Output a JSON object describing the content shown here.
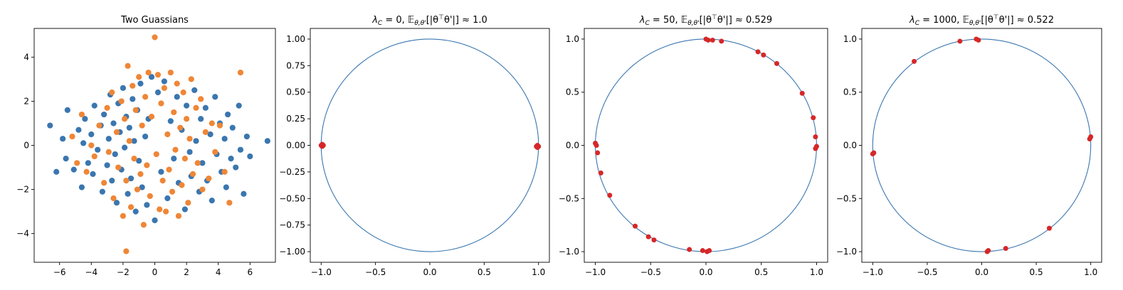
{
  "chart_data": [
    {
      "type": "scatter",
      "title": "Two Guassians",
      "xlim": [
        -7.6,
        7.6
      ],
      "ylim": [
        -5.3,
        5.3
      ],
      "xticks": [
        -6,
        -4,
        -2,
        0,
        2,
        4,
        6
      ],
      "yticks": [
        -4,
        -2,
        0,
        2,
        4
      ],
      "grid": false,
      "series": [
        {
          "color": "#3a76af",
          "points": [
            [
              -6.6,
              0.9
            ],
            [
              -6.2,
              -1.2
            ],
            [
              -5.8,
              0.3
            ],
            [
              -5.6,
              -0.6
            ],
            [
              -5.5,
              1.6
            ],
            [
              -5.1,
              -1.1
            ],
            [
              -4.8,
              0.7
            ],
            [
              -4.6,
              -1.9
            ],
            [
              -4.5,
              0.1
            ],
            [
              -4.4,
              1.2
            ],
            [
              -4.2,
              -0.8
            ],
            [
              -4.0,
              0.5
            ],
            [
              -3.9,
              -1.3
            ],
            [
              -3.8,
              1.8
            ],
            [
              -3.6,
              -0.2
            ],
            [
              -3.4,
              0.9
            ],
            [
              -3.3,
              -2.1
            ],
            [
              -3.2,
              1.4
            ],
            [
              -3.0,
              -0.9
            ],
            [
              -2.9,
              0.3
            ],
            [
              -2.8,
              2.3
            ],
            [
              -2.7,
              -1.6
            ],
            [
              -2.6,
              1.0
            ],
            [
              -2.5,
              -0.4
            ],
            [
              -2.4,
              -2.6
            ],
            [
              -2.3,
              1.9
            ],
            [
              -2.2,
              0.6
            ],
            [
              -2.1,
              -1.1
            ],
            [
              -2.0,
              2.6
            ],
            [
              -1.9,
              -0.1
            ],
            [
              -1.8,
              1.3
            ],
            [
              -1.7,
              -2.2
            ],
            [
              -1.6,
              0.8
            ],
            [
              -1.5,
              -1.5
            ],
            [
              -1.4,
              2.1
            ],
            [
              -1.3,
              0.2
            ],
            [
              -1.2,
              -3.0
            ],
            [
              -1.1,
              1.6
            ],
            [
              -1.0,
              -0.7
            ],
            [
              -0.9,
              2.8
            ],
            [
              -0.8,
              -1.9
            ],
            [
              -0.6,
              0.4
            ],
            [
              -0.5,
              -2.7
            ],
            [
              -0.4,
              1.2
            ],
            [
              -0.2,
              3.1
            ],
            [
              0.0,
              -3.4
            ],
            [
              0.2,
              2.4
            ],
            [
              0.4,
              -1.2
            ],
            [
              0.6,
              2.9
            ],
            [
              0.8,
              -2.4
            ],
            [
              1.0,
              1.1
            ],
            [
              1.2,
              -0.6
            ],
            [
              1.4,
              2.2
            ],
            [
              1.5,
              -1.7
            ],
            [
              1.7,
              0.7
            ],
            [
              1.9,
              -2.9
            ],
            [
              2.0,
              1.8
            ],
            [
              2.2,
              -0.3
            ],
            [
              2.3,
              -1.4
            ],
            [
              2.5,
              2.5
            ],
            [
              2.6,
              0.2
            ],
            [
              2.8,
              -2.1
            ],
            [
              2.9,
              1.2
            ],
            [
              3.0,
              -0.8
            ],
            [
              3.2,
              1.7
            ],
            [
              3.3,
              -1.6
            ],
            [
              3.5,
              0.5
            ],
            [
              3.6,
              -2.5
            ],
            [
              3.8,
              2.2
            ],
            [
              3.9,
              -0.4
            ],
            [
              4.1,
              1.0
            ],
            [
              4.2,
              -1.2
            ],
            [
              4.4,
              0.3
            ],
            [
              4.5,
              -1.9
            ],
            [
              4.6,
              1.4
            ],
            [
              4.8,
              -0.6
            ],
            [
              4.9,
              0.8
            ],
            [
              5.1,
              -1.0
            ],
            [
              5.3,
              1.8
            ],
            [
              5.4,
              -0.2
            ],
            [
              5.6,
              -2.2
            ],
            [
              5.8,
              0.4
            ],
            [
              6.0,
              -0.5
            ],
            [
              7.1,
              0.2
            ]
          ]
        },
        {
          "color": "#ef8636",
          "points": [
            [
              -5.2,
              0.4
            ],
            [
              -4.9,
              -0.8
            ],
            [
              -4.6,
              1.4
            ],
            [
              -4.3,
              -1.2
            ],
            [
              -4.0,
              0.0
            ],
            [
              -3.8,
              -0.5
            ],
            [
              -3.5,
              0.9
            ],
            [
              -3.2,
              -1.7
            ],
            [
              -3.0,
              1.7
            ],
            [
              -2.9,
              -0.3
            ],
            [
              -2.7,
              2.4
            ],
            [
              -2.6,
              -2.4
            ],
            [
              -2.4,
              0.6
            ],
            [
              -2.3,
              -1.0
            ],
            [
              -2.1,
              2.0
            ],
            [
              -2.0,
              -3.2
            ],
            [
              -1.9,
              1.2
            ],
            [
              -1.8,
              -4.8
            ],
            [
              -1.8,
              -1.6
            ],
            [
              -1.7,
              3.6
            ],
            [
              -1.6,
              0.2
            ],
            [
              -1.5,
              -2.8
            ],
            [
              -1.4,
              2.7
            ],
            [
              -1.3,
              -0.6
            ],
            [
              -1.2,
              1.6
            ],
            [
              -1.1,
              -2.0
            ],
            [
              -1.0,
              3.1
            ],
            [
              -0.9,
              -1.3
            ],
            [
              -0.8,
              0.9
            ],
            [
              -0.7,
              -3.6
            ],
            [
              -0.6,
              2.2
            ],
            [
              -0.5,
              -0.9
            ],
            [
              -0.4,
              3.3
            ],
            [
              -0.3,
              -2.3
            ],
            [
              -0.2,
              1.3
            ],
            [
              0.0,
              4.9
            ],
            [
              0.1,
              -0.4
            ],
            [
              0.2,
              3.2
            ],
            [
              0.3,
              -2.9
            ],
            [
              0.4,
              1.9
            ],
            [
              0.5,
              -1.6
            ],
            [
              0.6,
              2.6
            ],
            [
              0.7,
              -3.0
            ],
            [
              0.8,
              0.5
            ],
            [
              0.9,
              -1.1
            ],
            [
              1.0,
              3.3
            ],
            [
              1.1,
              -2.1
            ],
            [
              1.2,
              1.5
            ],
            [
              1.3,
              -0.2
            ],
            [
              1.4,
              2.8
            ],
            [
              1.5,
              -3.2
            ],
            [
              1.6,
              0.8
            ],
            [
              1.7,
              -1.8
            ],
            [
              1.8,
              2.4
            ],
            [
              1.9,
              -0.6
            ],
            [
              2.0,
              1.2
            ],
            [
              2.1,
              -2.6
            ],
            [
              2.2,
              0.3
            ],
            [
              2.3,
              3.0
            ],
            [
              2.4,
              -1.3
            ],
            [
              2.6,
              1.7
            ],
            [
              2.7,
              -0.8
            ],
            [
              2.9,
              2.1
            ],
            [
              3.0,
              -2.0
            ],
            [
              3.2,
              0.6
            ],
            [
              3.4,
              -1.5
            ],
            [
              3.6,
              1.0
            ],
            [
              3.8,
              -0.3
            ],
            [
              4.1,
              0.9
            ],
            [
              4.4,
              -1.2
            ],
            [
              4.7,
              -2.6
            ],
            [
              5.4,
              3.3
            ]
          ]
        }
      ]
    },
    {
      "type": "scatter",
      "title": "λ_C = 0, 𝔼_{θ,θ'}[|θ^⊤θ'|] ≈ 1.0",
      "title_parts": {
        "lam": "λ",
        "sub": "C",
        "mid": " = 0, 𝔼",
        "sub2": "θ,θ'",
        "bracket": "[|θ",
        "sup": "⊤",
        "tail": "θ'|] ≈ 1.0"
      },
      "xlim": [
        -1.1,
        1.1
      ],
      "ylim": [
        -1.1,
        1.1
      ],
      "xticks": [
        -1.0,
        -0.5,
        0.0,
        0.5,
        1.0
      ],
      "xtick_labels": [
        "−1.0",
        "−0.5",
        "0.0",
        "0.5",
        "1.0"
      ],
      "yticks": [
        1.0,
        0.75,
        0.5,
        0.25,
        0.0,
        -0.25,
        -0.5,
        -0.75,
        -1.0
      ],
      "ytick_labels": [
        "1.00",
        "0.75",
        "0.50",
        "0.25",
        "0.00",
        "−0.25",
        "−0.50",
        "−0.75",
        "−1.00"
      ],
      "unit_circle": true,
      "series": [
        {
          "color": "#d62728",
          "points": [
            [
              -1.0,
              0.0
            ],
            [
              -0.99,
              0.01
            ],
            [
              -0.99,
              -0.01
            ],
            [
              -0.98,
              0.0
            ],
            [
              1.0,
              -0.01
            ],
            [
              0.99,
              0.0
            ],
            [
              0.99,
              -0.02
            ],
            [
              0.98,
              -0.01
            ]
          ]
        }
      ]
    },
    {
      "type": "scatter",
      "title": "λ_C = 50, 𝔼_{θ,θ'}[|θ^⊤θ'|] ≈ 0.529",
      "title_parts": {
        "lam": "λ",
        "sub": "C",
        "mid": " = 50, 𝔼",
        "sub2": "θ,θ'",
        "bracket": "[|θ",
        "sup": "⊤",
        "tail": "θ'|] ≈ 0.529"
      },
      "xlim": [
        -1.1,
        1.1
      ],
      "ylim": [
        -1.1,
        1.1
      ],
      "xticks": [
        -1.0,
        -0.5,
        0.0,
        0.5,
        1.0
      ],
      "xtick_labels": [
        "−1.0",
        "−0.5",
        "0.0",
        "0.5",
        "1.0"
      ],
      "yticks": [
        1.0,
        0.5,
        0.0,
        -0.5,
        -1.0
      ],
      "ytick_labels": [
        "1.0",
        "0.5",
        "0.0",
        "−0.5",
        "−1.0"
      ],
      "unit_circle": true,
      "series": [
        {
          "color": "#d62728",
          "points": [
            [
              0.0,
              1.0
            ],
            [
              0.02,
              0.99
            ],
            [
              0.06,
              0.99
            ],
            [
              0.14,
              0.98
            ],
            [
              0.47,
              0.88
            ],
            [
              0.52,
              0.85
            ],
            [
              0.64,
              0.77
            ],
            [
              0.87,
              0.49
            ],
            [
              0.97,
              0.26
            ],
            [
              0.99,
              0.08
            ],
            [
              1.0,
              -0.01
            ],
            [
              0.99,
              -0.03
            ],
            [
              -1.0,
              0.02
            ],
            [
              -0.99,
              0.0
            ],
            [
              -0.98,
              -0.07
            ],
            [
              -0.95,
              -0.26
            ],
            [
              -0.87,
              -0.47
            ],
            [
              -0.64,
              -0.76
            ],
            [
              -0.52,
              -0.86
            ],
            [
              -0.47,
              -0.89
            ],
            [
              -0.15,
              -0.98
            ],
            [
              -0.03,
              -0.99
            ],
            [
              0.01,
              -1.0
            ],
            [
              0.03,
              -0.99
            ]
          ]
        }
      ]
    },
    {
      "type": "scatter",
      "title": "λ_C = 1000, 𝔼_{θ,θ'}[|θ^⊤θ'|] ≈ 0.522",
      "title_parts": {
        "lam": "λ",
        "sub": "C",
        "mid": " = 1000, 𝔼",
        "sub2": "θ,θ'",
        "bracket": "[|θ",
        "sup": "⊤",
        "tail": "θ'|] ≈ 0.522"
      },
      "xlim": [
        -1.1,
        1.1
      ],
      "ylim": [
        -1.1,
        1.1
      ],
      "xticks": [
        -1.0,
        -0.5,
        0.0,
        0.5,
        1.0
      ],
      "xtick_labels": [
        "−1.0",
        "−0.5",
        "0.0",
        "0.5",
        "1.0"
      ],
      "yticks": [
        1.0,
        0.5,
        0.0,
        -0.5,
        -1.0
      ],
      "ytick_labels": [
        "1.0",
        "0.5",
        "0.0",
        "−0.5",
        "−1.0"
      ],
      "unit_circle": true,
      "series": [
        {
          "color": "#d62728",
          "points": [
            [
              -0.2,
              0.98
            ],
            [
              -0.05,
              1.0
            ],
            [
              -0.03,
              0.99
            ],
            [
              -0.62,
              0.79
            ],
            [
              1.0,
              0.08
            ],
            [
              0.99,
              0.06
            ],
            [
              -0.99,
              -0.07
            ],
            [
              -1.0,
              -0.08
            ],
            [
              0.62,
              -0.78
            ],
            [
              0.22,
              -0.97
            ],
            [
              0.05,
              -1.0
            ],
            [
              0.06,
              -0.99
            ]
          ]
        }
      ]
    }
  ]
}
